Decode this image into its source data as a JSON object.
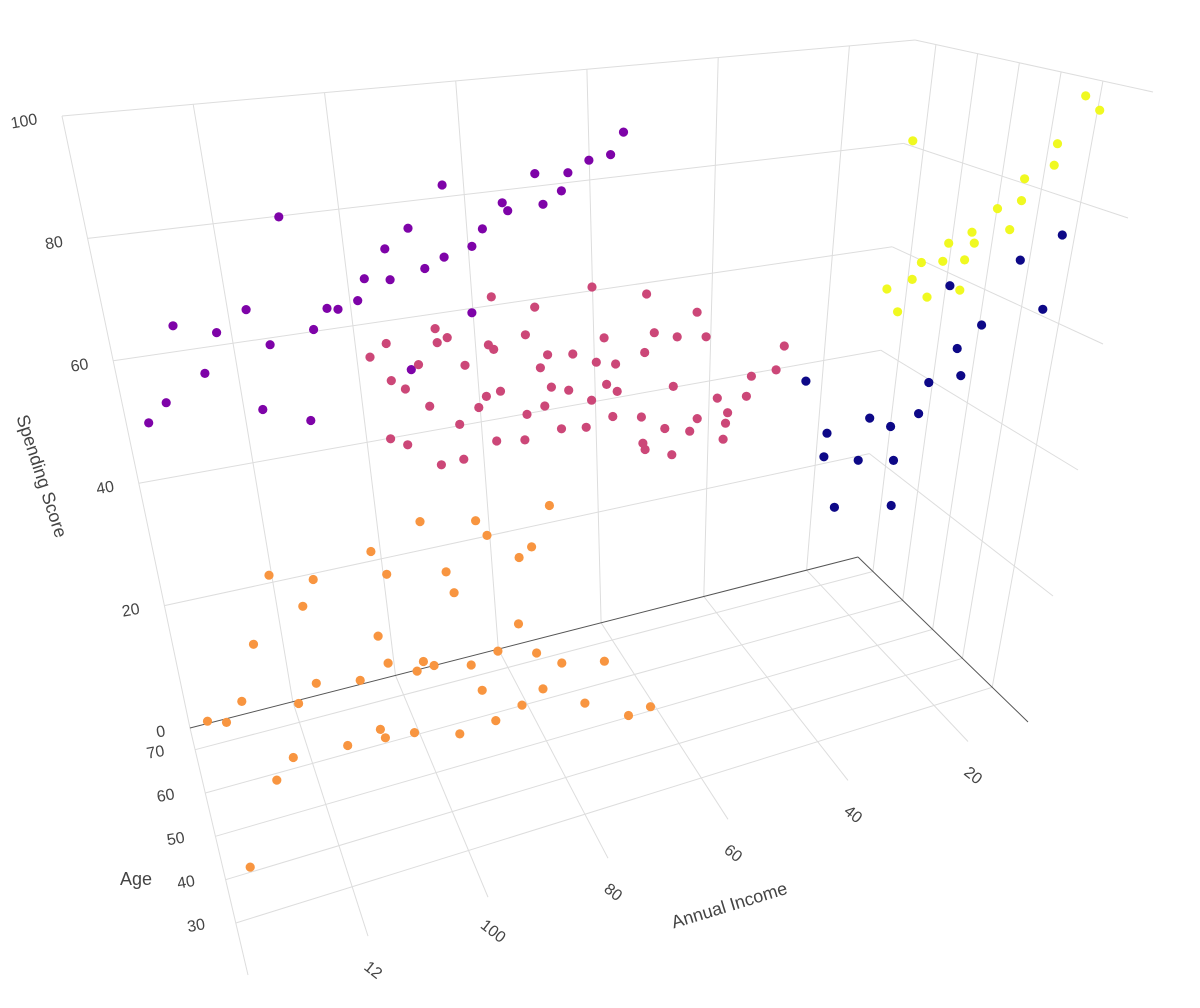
{
  "chart_data": {
    "type": "scatter",
    "title": "",
    "axes": {
      "x": {
        "label": "Annual Income",
        "range": [
          10,
          140
        ],
        "ticks": [
          "20",
          "40",
          "60",
          "80",
          "100",
          "12"
        ]
      },
      "y": {
        "label": "Age",
        "range": [
          18,
          75
        ],
        "ticks": [
          "30",
          "40",
          "50",
          "60",
          "70"
        ]
      },
      "z": {
        "label": "Spending Score",
        "range": [
          0,
          100
        ],
        "ticks": [
          "0",
          "20",
          "40",
          "60",
          "80",
          "100"
        ]
      }
    },
    "grid": true,
    "legend": false,
    "cluster_colors": [
      "#0d0887",
      "#7e03a8",
      "#cc4778",
      "#f89540",
      "#f0f921"
    ],
    "series": [
      {
        "cluster": 0,
        "color": "#0d0887",
        "points": [
          [
            16,
            22,
            77
          ],
          [
            18,
            20,
            66
          ],
          [
            20,
            24,
            73
          ],
          [
            22,
            28,
            62
          ],
          [
            24,
            30,
            58
          ],
          [
            25,
            26,
            55
          ],
          [
            26,
            33,
            52
          ],
          [
            28,
            31,
            48
          ],
          [
            30,
            35,
            45
          ],
          [
            32,
            29,
            42
          ],
          [
            34,
            36,
            40
          ],
          [
            35,
            22,
            38
          ],
          [
            37,
            27,
            50
          ],
          [
            39,
            32,
            35
          ],
          [
            40,
            34,
            46
          ],
          [
            42,
            30,
            44
          ],
          [
            44,
            33,
            55
          ],
          [
            29,
            24,
            70
          ]
        ]
      },
      {
        "cluster": 1,
        "color": "#7e03a8",
        "points": [
          [
            70,
            30,
            95
          ],
          [
            72,
            29,
            92
          ],
          [
            74,
            32,
            91
          ],
          [
            76,
            35,
            89
          ],
          [
            78,
            31,
            87
          ],
          [
            80,
            33,
            85
          ],
          [
            82,
            28,
            90
          ],
          [
            84,
            36,
            84
          ],
          [
            86,
            30,
            86
          ],
          [
            88,
            34,
            82
          ],
          [
            90,
            32,
            80
          ],
          [
            92,
            38,
            88
          ],
          [
            94,
            31,
            79
          ],
          [
            96,
            35,
            77
          ],
          [
            98,
            33,
            83
          ],
          [
            100,
            40,
            75
          ],
          [
            102,
            29,
            81
          ],
          [
            104,
            37,
            76
          ],
          [
            106,
            32,
            74
          ],
          [
            108,
            38,
            72
          ],
          [
            110,
            34,
            73
          ],
          [
            112,
            36,
            70
          ],
          [
            115,
            30,
            86
          ],
          [
            118,
            39,
            68
          ],
          [
            121,
            33,
            74
          ],
          [
            125,
            41,
            70
          ],
          [
            128,
            35,
            66
          ],
          [
            131,
            38,
            72
          ],
          [
            134,
            39,
            62
          ],
          [
            137,
            42,
            59
          ],
          [
            120,
            45,
            58
          ],
          [
            113,
            47,
            55
          ],
          [
            97,
            48,
            60
          ],
          [
            88,
            45,
            68
          ]
        ]
      },
      {
        "cluster": 2,
        "color": "#cc4778",
        "points": [
          [
            40,
            50,
            55
          ],
          [
            42,
            48,
            52
          ],
          [
            44,
            52,
            50
          ],
          [
            46,
            49,
            48
          ],
          [
            48,
            55,
            46
          ],
          [
            50,
            47,
            45
          ],
          [
            52,
            53,
            44
          ],
          [
            54,
            51,
            43
          ],
          [
            56,
            56,
            42
          ],
          [
            58,
            48,
            41
          ],
          [
            60,
            54,
            40
          ],
          [
            62,
            50,
            47
          ],
          [
            64,
            57,
            45
          ],
          [
            66,
            49,
            52
          ],
          [
            68,
            55,
            49
          ],
          [
            70,
            52,
            46
          ],
          [
            72,
            58,
            44
          ],
          [
            74,
            47,
            54
          ],
          [
            76,
            53,
            50
          ],
          [
            78,
            56,
            48
          ],
          [
            80,
            51,
            46
          ],
          [
            82,
            60,
            43
          ],
          [
            84,
            48,
            55
          ],
          [
            86,
            54,
            51
          ],
          [
            88,
            59,
            47
          ],
          [
            90,
            50,
            45
          ],
          [
            92,
            57,
            42
          ],
          [
            94,
            52,
            53
          ],
          [
            96,
            62,
            44
          ],
          [
            98,
            49,
            57
          ],
          [
            100,
            55,
            48
          ],
          [
            48,
            63,
            58
          ],
          [
            52,
            61,
            55
          ],
          [
            56,
            64,
            52
          ],
          [
            60,
            66,
            50
          ],
          [
            64,
            60,
            57
          ],
          [
            68,
            63,
            54
          ],
          [
            72,
            67,
            51
          ],
          [
            76,
            61,
            59
          ],
          [
            80,
            65,
            56
          ],
          [
            84,
            68,
            53
          ],
          [
            88,
            62,
            60
          ],
          [
            92,
            66,
            55
          ],
          [
            96,
            69,
            52
          ],
          [
            100,
            64,
            58
          ],
          [
            54,
            45,
            60
          ],
          [
            62,
            44,
            62
          ],
          [
            70,
            46,
            58
          ],
          [
            78,
            43,
            61
          ],
          [
            86,
            45,
            63
          ],
          [
            94,
            42,
            65
          ],
          [
            58,
            58,
            64
          ],
          [
            66,
            59,
            66
          ],
          [
            74,
            62,
            63
          ],
          [
            82,
            57,
            67
          ],
          [
            90,
            61,
            62
          ],
          [
            98,
            60,
            61
          ],
          [
            50,
            67,
            44
          ],
          [
            60,
            70,
            45
          ],
          [
            70,
            68,
            47
          ],
          [
            80,
            71,
            46
          ],
          [
            46,
            57,
            38
          ],
          [
            56,
            65,
            36
          ],
          [
            44,
            60,
            41
          ]
        ]
      },
      {
        "cluster": 3,
        "color": "#f89540",
        "points": [
          [
            70,
            25,
            15
          ],
          [
            72,
            30,
            12
          ],
          [
            74,
            35,
            18
          ],
          [
            76,
            40,
            10
          ],
          [
            78,
            45,
            14
          ],
          [
            80,
            50,
            8
          ],
          [
            82,
            55,
            16
          ],
          [
            84,
            38,
            20
          ],
          [
            86,
            42,
            11
          ],
          [
            88,
            47,
            17
          ],
          [
            90,
            52,
            9
          ],
          [
            92,
            36,
            13
          ],
          [
            94,
            41,
            19
          ],
          [
            96,
            46,
            7
          ],
          [
            98,
            51,
            15
          ],
          [
            100,
            56,
            12
          ],
          [
            102,
            39,
            22
          ],
          [
            104,
            44,
            10
          ],
          [
            106,
            49,
            18
          ],
          [
            108,
            54,
            6
          ],
          [
            110,
            37,
            14
          ],
          [
            112,
            42,
            20
          ],
          [
            115,
            47,
            9
          ],
          [
            118,
            52,
            16
          ],
          [
            121,
            57,
            11
          ],
          [
            125,
            40,
            13
          ],
          [
            128,
            45,
            8
          ],
          [
            131,
            50,
            17
          ],
          [
            134,
            55,
            12
          ],
          [
            137,
            60,
            10
          ],
          [
            78,
            58,
            26
          ],
          [
            86,
            62,
            30
          ],
          [
            96,
            59,
            33
          ],
          [
            104,
            63,
            28
          ],
          [
            114,
            66,
            24
          ],
          [
            122,
            60,
            29
          ],
          [
            88,
            28,
            38
          ],
          [
            98,
            33,
            36
          ],
          [
            108,
            43,
            25
          ],
          [
            92,
            57,
            22
          ],
          [
            116,
            70,
            18
          ],
          [
            126,
            68,
            15
          ],
          [
            72,
            66,
            28
          ],
          [
            82,
            70,
            23
          ],
          [
            100,
            72,
            19
          ],
          [
            136,
            24,
            9
          ]
        ]
      },
      {
        "cluster": 4,
        "color": "#f0f921",
        "points": [
          [
            15,
            20,
            97
          ],
          [
            16,
            22,
            99
          ],
          [
            17,
            25,
            91
          ],
          [
            18,
            23,
            88
          ],
          [
            19,
            28,
            85
          ],
          [
            20,
            26,
            82
          ],
          [
            21,
            30,
            80
          ],
          [
            22,
            24,
            78
          ],
          [
            23,
            32,
            76
          ],
          [
            24,
            29,
            75
          ],
          [
            25,
            34,
            74
          ],
          [
            26,
            27,
            73
          ],
          [
            27,
            31,
            72
          ],
          [
            28,
            35,
            71
          ],
          [
            29,
            21,
            70
          ],
          [
            30,
            33,
            69
          ],
          [
            31,
            26,
            68
          ],
          [
            32,
            36,
            67
          ],
          [
            33,
            30,
            65
          ],
          [
            34,
            28,
            92
          ]
        ]
      }
    ]
  }
}
